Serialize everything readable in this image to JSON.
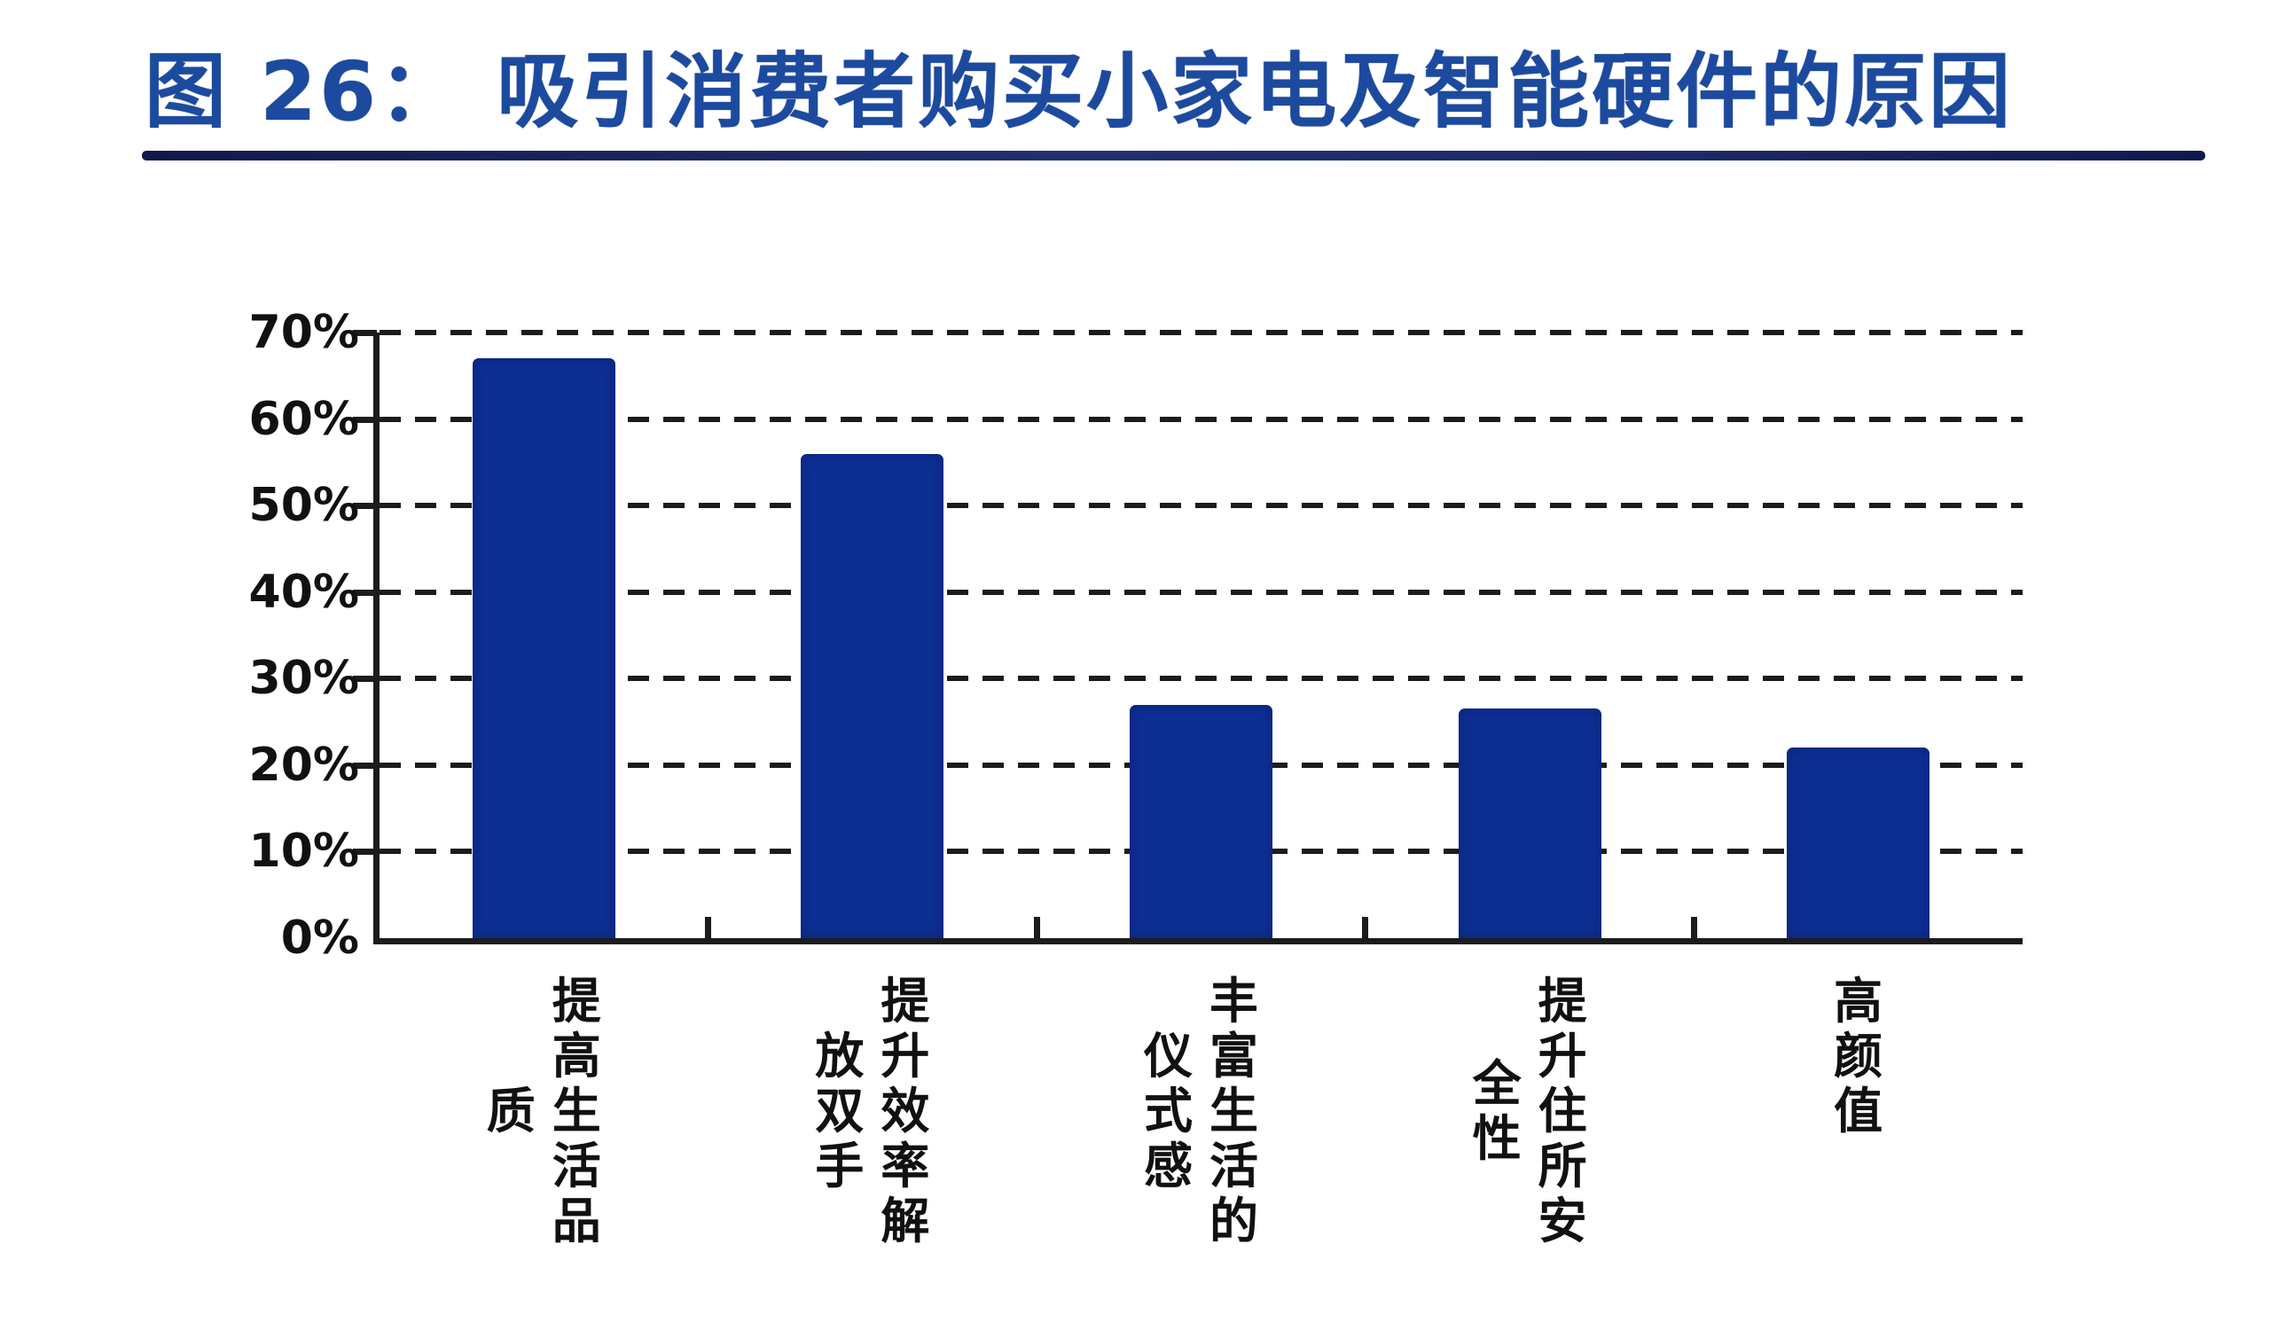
{
  "header": {
    "figure_label": "图 26：",
    "title": "吸引消费者购买小家电及智能硬件的原因"
  },
  "chart_data": {
    "type": "bar",
    "title": "吸引消费者购买小家电及智能硬件的原因",
    "categories": [
      "提高生活品质",
      "提升效率解放双手",
      "丰富生活的仪式感",
      "提升住所安全性",
      "高颜值"
    ],
    "values": [
      67,
      56,
      27,
      26.5,
      22
    ],
    "unit": "%",
    "xlabel": "",
    "ylabel": "",
    "ylim": [
      0,
      70
    ],
    "ytick_step": 10,
    "ytick_labels": [
      "0%",
      "10%",
      "20%",
      "30%",
      "40%",
      "50%",
      "60%",
      "70%"
    ],
    "grid": "dashed-horizontal",
    "legend_position": "none",
    "bar_color": "#0d2e93",
    "axis_color": "#1c1c1c",
    "title_color": "#1c4a9e",
    "underline_color": "#131f55",
    "label_wrap_chars_per_column": 5
  }
}
